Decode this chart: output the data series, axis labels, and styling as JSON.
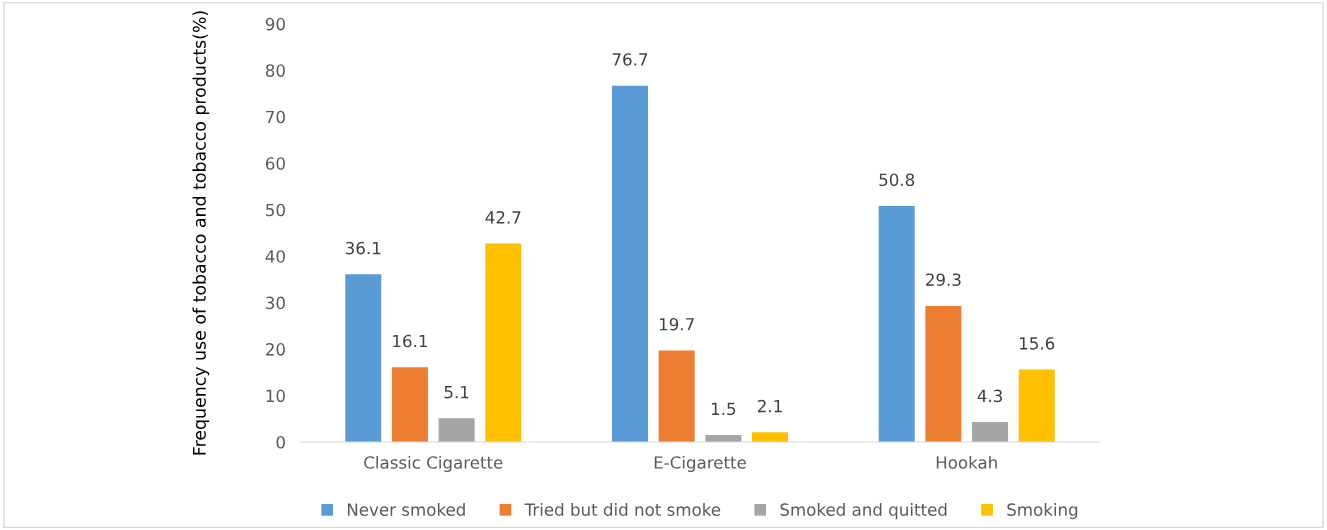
{
  "chart_data": {
    "type": "bar",
    "ylabel": "Frequency use of tobacco and tobacco products(%)",
    "categories": [
      "Classic Cigarette",
      "E-Cigarette",
      "Hookah"
    ],
    "series": [
      {
        "name": "Never smoked",
        "color": "#5b9bd5",
        "values": [
          36.1,
          76.7,
          50.8
        ]
      },
      {
        "name": "Tried but did not smoke",
        "color": "#ed7d31",
        "values": [
          16.1,
          19.7,
          29.3
        ]
      },
      {
        "name": "Smoked and quitted",
        "color": "#a5a5a5",
        "values": [
          5.1,
          1.5,
          4.3
        ]
      },
      {
        "name": "Smoking",
        "color": "#ffc000",
        "values": [
          42.7,
          2.1,
          15.6
        ]
      }
    ],
    "ylim": [
      0,
      90
    ],
    "yticks": [
      0,
      10,
      20,
      30,
      40,
      50,
      60,
      70,
      80,
      90
    ],
    "data_labels": true,
    "grid": false,
    "legend": "bottom"
  }
}
